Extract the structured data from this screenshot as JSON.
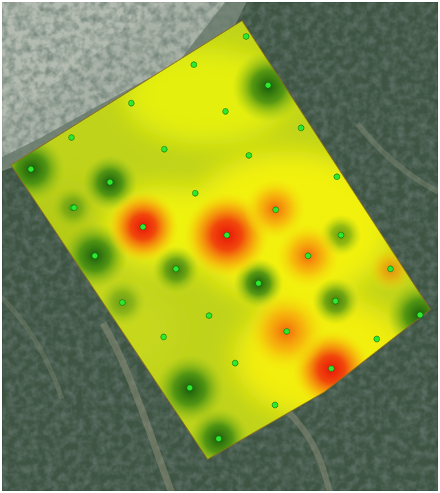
{
  "map": {
    "basemap": "satellite-imagery-forest",
    "overlay": "interpolated-heatmap",
    "colors": {
      "low": "#1f6b0f",
      "mid": "#e8ee00",
      "high": "#e9150a",
      "sample_point": "#2ee82e",
      "border": "#8a6a1a",
      "forest_dark": "#3a4f3e",
      "clearing": "#aab3a8"
    },
    "sample_points": [
      {
        "id": 1,
        "level": "low"
      },
      {
        "id": 2,
        "level": "mid"
      },
      {
        "id": 3,
        "level": "low"
      },
      {
        "id": 4,
        "level": "mid"
      },
      {
        "id": 5,
        "level": "mid"
      },
      {
        "id": 6,
        "level": "mid"
      },
      {
        "id": 7,
        "level": "mid"
      },
      {
        "id": 8,
        "level": "mid"
      },
      {
        "id": 9,
        "level": "low"
      },
      {
        "id": 10,
        "level": "low"
      },
      {
        "id": 11,
        "level": "mid"
      },
      {
        "id": 12,
        "level": "mid"
      },
      {
        "id": 13,
        "level": "mid"
      },
      {
        "id": 14,
        "level": "mid"
      },
      {
        "id": 15,
        "level": "high"
      },
      {
        "id": 16,
        "level": "high"
      },
      {
        "id": 17,
        "level": "high"
      },
      {
        "id": 18,
        "level": "mid"
      },
      {
        "id": 19,
        "level": "low"
      },
      {
        "id": 20,
        "level": "high"
      },
      {
        "id": 21,
        "level": "low"
      },
      {
        "id": 22,
        "level": "low"
      },
      {
        "id": 23,
        "level": "mid"
      },
      {
        "id": 24,
        "level": "mid"
      },
      {
        "id": 25,
        "level": "high"
      },
      {
        "id": 26,
        "level": "low"
      },
      {
        "id": 27,
        "level": "mid"
      },
      {
        "id": 28,
        "level": "mid"
      },
      {
        "id": 29,
        "level": "high"
      },
      {
        "id": 30,
        "level": "low"
      },
      {
        "id": 31,
        "level": "mid"
      },
      {
        "id": 32,
        "level": "low"
      },
      {
        "id": 33,
        "level": "mid"
      },
      {
        "id": 34,
        "level": "low"
      },
      {
        "id": 35,
        "level": "mid"
      },
      {
        "id": 36,
        "level": "low"
      }
    ]
  }
}
